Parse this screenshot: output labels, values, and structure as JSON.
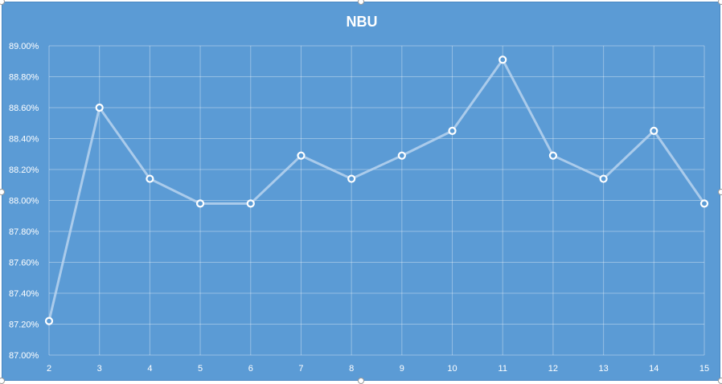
{
  "colors": {
    "background": "#5b9bd5",
    "line": "#b8d3ee",
    "marker_stroke": "#ffffff"
  },
  "chart_data": {
    "type": "line",
    "title": "NBU",
    "xlabel": "",
    "ylabel": "",
    "x": [
      2,
      3,
      4,
      5,
      6,
      7,
      8,
      9,
      10,
      11,
      12,
      13,
      14,
      15
    ],
    "series": [
      {
        "values": [
          87.22,
          88.6,
          88.14,
          87.98,
          87.98,
          88.29,
          88.14,
          88.29,
          88.45,
          88.91,
          88.29,
          88.14,
          88.45,
          87.98
        ]
      }
    ],
    "ylim": [
      87.0,
      89.0
    ],
    "y_ticks": [
      "87.00%",
      "87.20%",
      "87.40%",
      "87.60%",
      "87.80%",
      "88.00%",
      "88.20%",
      "88.40%",
      "88.60%",
      "88.80%",
      "89.00%"
    ],
    "x_ticks": [
      "2",
      "3",
      "4",
      "5",
      "6",
      "7",
      "8",
      "9",
      "10",
      "11",
      "12",
      "13",
      "14",
      "15"
    ],
    "grid": true,
    "legend": "none"
  }
}
